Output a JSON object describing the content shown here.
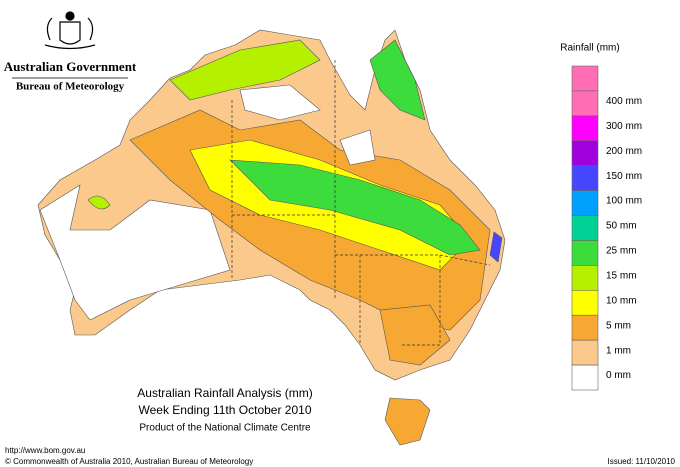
{
  "header": {
    "government": "Australian Government",
    "agency": "Bureau of Meteorology"
  },
  "legend": {
    "title": "Rainfall (mm)",
    "colors": [
      "#ff6eb4",
      "#ff00ff",
      "#a000dc",
      "#4646ff",
      "#00a0ff",
      "#00d296",
      "#3cdc3c",
      "#b4f000",
      "#ffff00",
      "#f7a833",
      "#fbc98c",
      "#ffffff"
    ],
    "labels": [
      "400 mm",
      "300 mm",
      "200 mm",
      "150 mm",
      "100 mm",
      "50 mm",
      "25 mm",
      "15 mm",
      "10 mm",
      "5 mm",
      "1 mm",
      "0 mm"
    ]
  },
  "title": {
    "line1": "Australian Rainfall Analysis (mm)",
    "line2": "Week Ending 11th October 2010",
    "line3": "Product of the National Climate Centre"
  },
  "footer": {
    "url": "http://www.bom.gov.au",
    "copyright": "© Commonwealth of Australia 2010, Australian Bureau of Meteorology",
    "issued": "Issued: 11/10/2010"
  }
}
